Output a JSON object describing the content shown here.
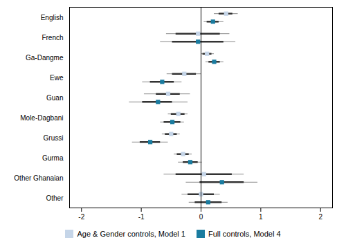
{
  "chart_data": {
    "type": "forest",
    "categories": [
      "English",
      "French",
      "Ga-Dangme",
      "Ewe",
      "Guan",
      "Mole-Dagbani",
      "Grussi",
      "Gurma",
      "Other Ghanaian",
      "Other"
    ],
    "series": [
      {
        "name": "Age & Gender controls, Model 1",
        "color": "#c5d5e8",
        "values": [
          0.42,
          -0.05,
          0.1,
          -0.28,
          -0.55,
          -0.38,
          -0.5,
          -0.3,
          0.05,
          0.0
        ],
        "ci95_lo": [
          0.3,
          -0.42,
          0.03,
          -0.48,
          -0.75,
          -0.5,
          -0.6,
          -0.4,
          -0.42,
          -0.22
        ],
        "ci95_hi": [
          0.53,
          0.32,
          0.18,
          -0.08,
          -0.35,
          -0.27,
          -0.4,
          -0.2,
          0.52,
          0.22
        ],
        "ci99_lo": [
          0.22,
          -0.58,
          0.0,
          -0.57,
          -0.95,
          -0.55,
          -0.65,
          -0.45,
          -0.62,
          -0.32
        ],
        "ci99_hi": [
          0.62,
          0.48,
          0.22,
          -0.0,
          -0.18,
          -0.22,
          -0.35,
          -0.15,
          0.72,
          0.32
        ]
      },
      {
        "name": "Full controls, Model 4",
        "color": "#1a7ca0",
        "values": [
          0.2,
          -0.05,
          0.22,
          -0.65,
          -0.72,
          -0.48,
          -0.85,
          -0.18,
          0.35,
          0.12
        ],
        "ci95_lo": [
          0.1,
          -0.48,
          0.13,
          -0.85,
          -0.98,
          -0.62,
          -1.02,
          -0.3,
          -0.02,
          -0.1
        ],
        "ci95_hi": [
          0.3,
          0.38,
          0.32,
          -0.45,
          -0.48,
          -0.34,
          -0.68,
          -0.05,
          0.72,
          0.35
        ],
        "ci99_lo": [
          0.05,
          -0.68,
          0.08,
          -0.98,
          -1.2,
          -0.68,
          -1.15,
          -0.38,
          -0.25,
          -0.2
        ],
        "ci99_hi": [
          0.38,
          0.58,
          0.38,
          -0.32,
          -0.22,
          -0.28,
          -0.55,
          0.02,
          0.95,
          0.45
        ]
      }
    ],
    "xlim": [
      -2.2,
      2.2
    ],
    "xticks": [
      -2,
      -1,
      0,
      1,
      2
    ],
    "legend": "bottom"
  }
}
